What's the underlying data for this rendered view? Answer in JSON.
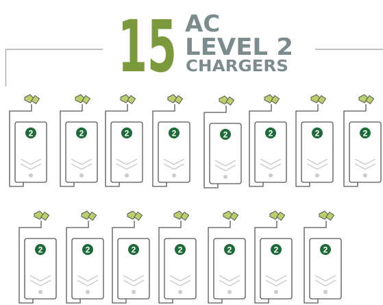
{
  "header": {
    "count": "15",
    "line1": "AC",
    "line2": "LEVEL 2",
    "line3": "CHARGERS"
  },
  "chargers": [
    {
      "label": "2"
    },
    {
      "label": "2"
    },
    {
      "label": "2"
    },
    {
      "label": "2"
    },
    {
      "label": "2"
    },
    {
      "label": "2"
    },
    {
      "label": "2"
    },
    {
      "label": "2"
    },
    {
      "label": "2"
    },
    {
      "label": "2"
    },
    {
      "label": "2"
    },
    {
      "label": "2"
    },
    {
      "label": "2"
    },
    {
      "label": "2"
    },
    {
      "label": "2"
    }
  ]
}
